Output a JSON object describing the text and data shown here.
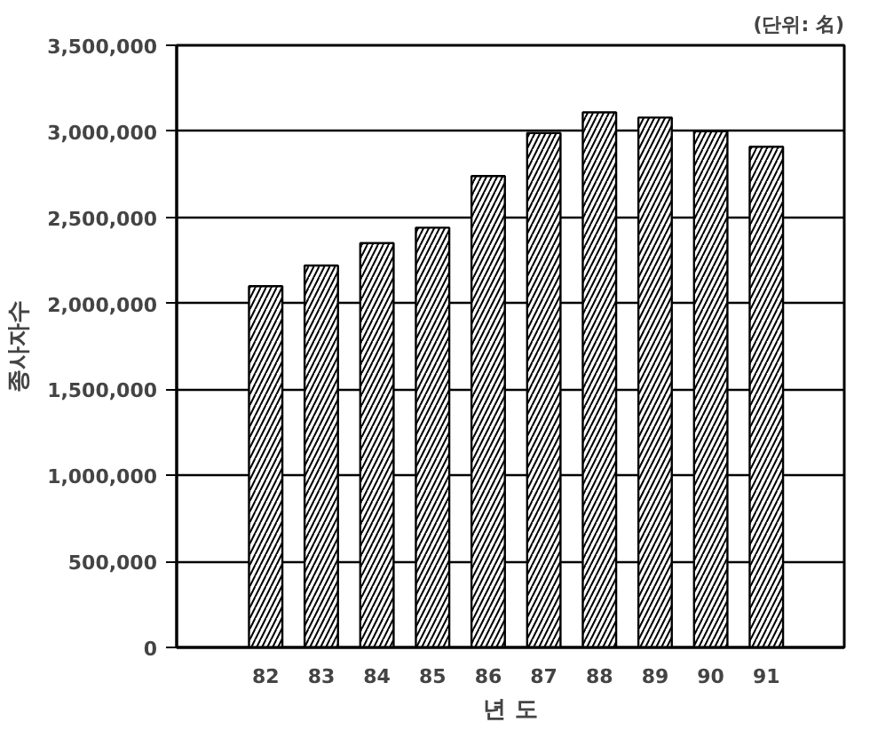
{
  "chart_data": {
    "type": "bar",
    "ylabel": "종사자수",
    "xlabel": "년 도",
    "annotations": [
      "(단위: 名)"
    ],
    "categories": [
      "82",
      "83",
      "84",
      "85",
      "86",
      "87",
      "88",
      "89",
      "90",
      "91"
    ],
    "values": [
      2100000,
      2220000,
      2350000,
      2440000,
      2740000,
      2990000,
      3110000,
      3080000,
      3000000,
      2910000
    ],
    "color": "#ffffff",
    "ylim": [
      0,
      3500000
    ],
    "yticks": [
      {
        "value": 0,
        "label": "0"
      },
      {
        "value": 500000,
        "label": "500,000"
      },
      {
        "value": 1000000,
        "label": "1,000,000"
      },
      {
        "value": 1500000,
        "label": "1,500,000"
      },
      {
        "value": 2000000,
        "label": "2,000,000"
      },
      {
        "value": 2500000,
        "label": "2,500,000"
      },
      {
        "value": 3000000,
        "label": "3,000,000"
      },
      {
        "value": 3500000,
        "label": "3,500,000"
      }
    ],
    "grid": "y"
  }
}
